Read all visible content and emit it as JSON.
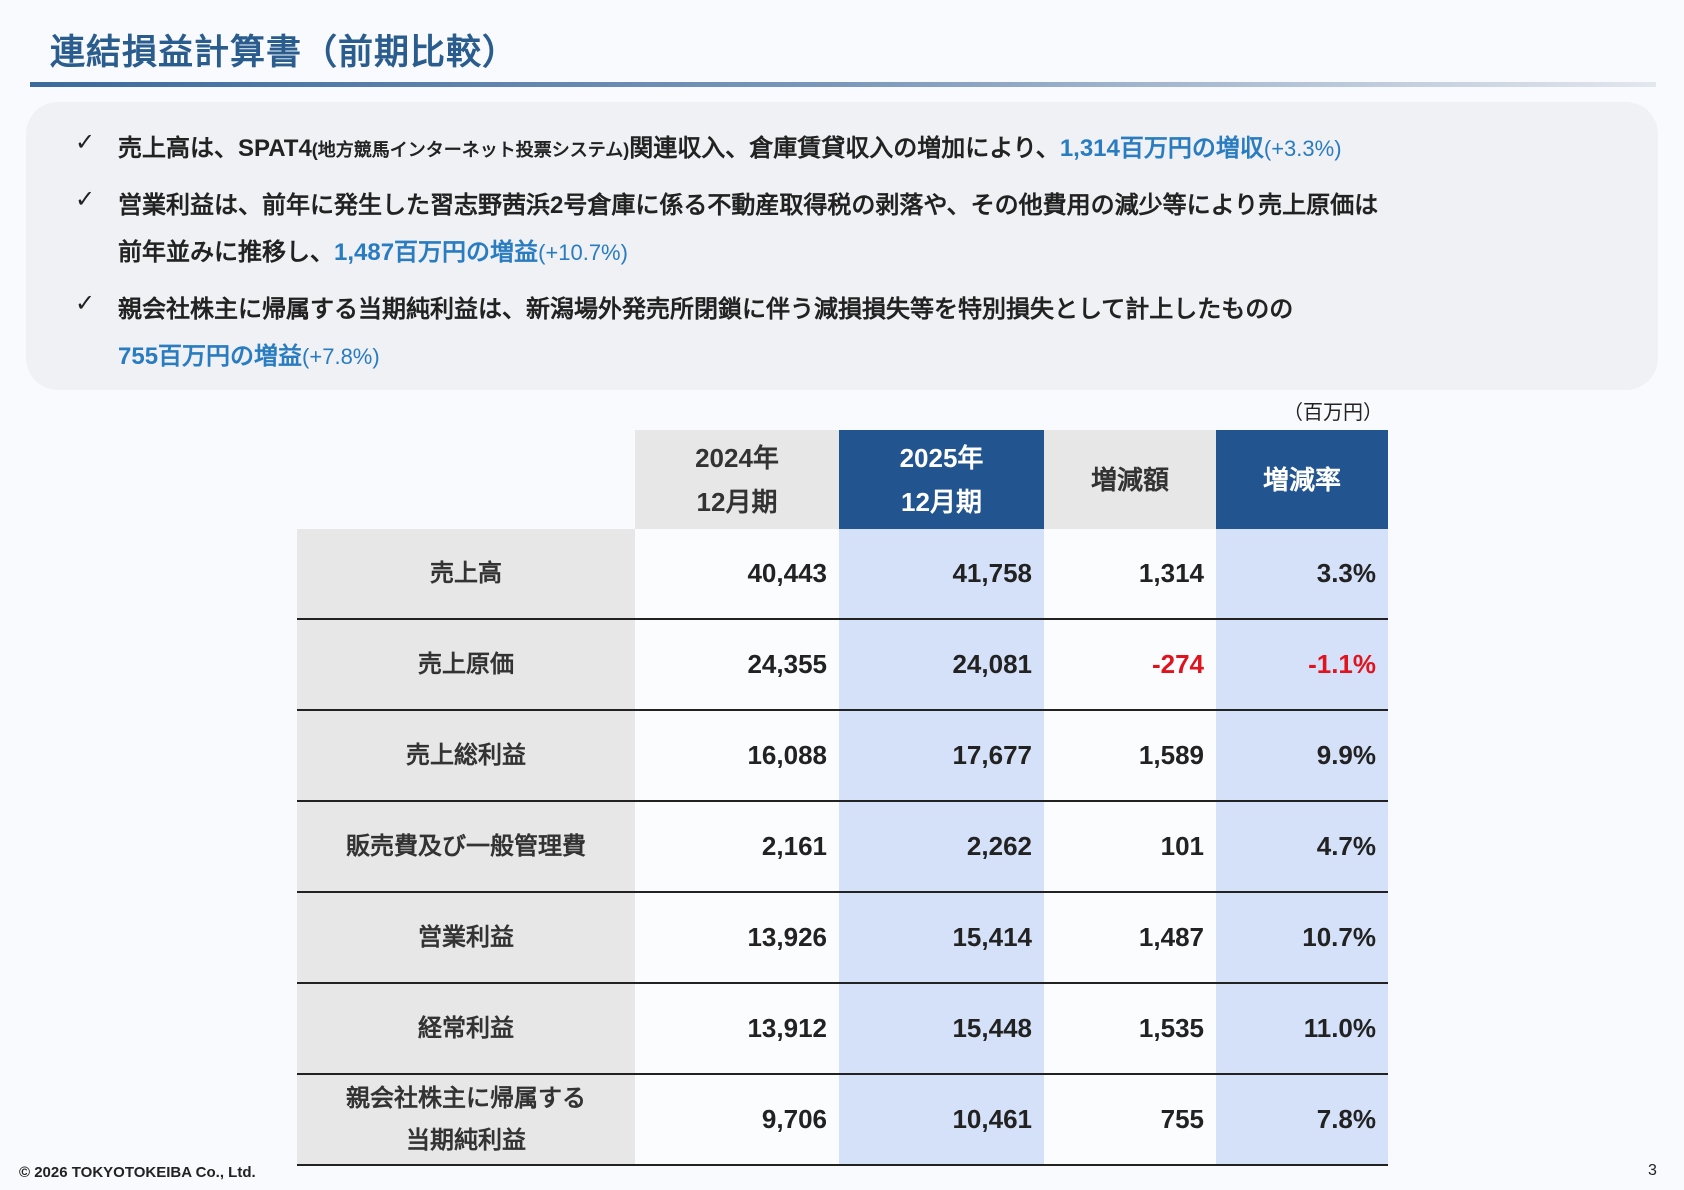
{
  "title": "連結損益計算書（前期比較）",
  "check_icon": "✓",
  "bullets": [
    {
      "l1_a": "売上高は、SPAT4",
      "l1_small": "(地方競馬インターネット投票システム)",
      "l1_b": "関連収入、倉庫賃貸収入の増加により、",
      "hl": "1,314百万円の増収",
      "pct": "(+3.3%)"
    },
    {
      "l1": "営業利益は、前年に発生した習志野茜浜2号倉庫に係る不動産取得税の剥落や、その他費用の減少等により売上原価は",
      "l2": "前年並みに推移し、",
      "hl": "1,487百万円の増益",
      "pct": "(+10.7%)"
    },
    {
      "l1": "親会社株主に帰属する当期純利益は、新潟場外発売所閉鎖に伴う減損損失等を特別損失として計上したものの",
      "hl": "755百万円の増益",
      "pct": "(+7.8%)"
    }
  ],
  "unit": "（百万円）",
  "table": {
    "headers": [
      {
        "l1": "2024年",
        "l2": "12月期"
      },
      {
        "l1": "2025年",
        "l2": "12月期"
      },
      {
        "l1": "増減額"
      },
      {
        "l1": "増減率"
      }
    ],
    "rows": [
      {
        "label": "売上高",
        "v2024": "40,443",
        "v2025": "41,758",
        "diff": "1,314",
        "rate": "3.3%"
      },
      {
        "label": "売上原価",
        "v2024": "24,355",
        "v2025": "24,081",
        "diff": "-274",
        "rate": "-1.1%"
      },
      {
        "label": "売上総利益",
        "v2024": "16,088",
        "v2025": "17,677",
        "diff": "1,589",
        "rate": "9.9%"
      },
      {
        "label": "販売費及び一般管理費",
        "v2024": "2,161",
        "v2025": "2,262",
        "diff": "101",
        "rate": "4.7%"
      },
      {
        "label": "営業利益",
        "v2024": "13,926",
        "v2025": "15,414",
        "diff": "1,487",
        "rate": "10.7%"
      },
      {
        "label": "経常利益",
        "v2024": "13,912",
        "v2025": "15,448",
        "diff": "1,535",
        "rate": "11.0%"
      },
      {
        "label": "親会社株主に帰属する",
        "label2": "当期純利益",
        "v2024": "9,706",
        "v2025": "10,461",
        "diff": "755",
        "rate": "7.8%"
      }
    ]
  },
  "colors": {
    "title": "#2a5d8e",
    "highlight": "#2a7cc0",
    "header_dark": "#22548f",
    "highlight_col": "#d4e1f8",
    "negative": "#e0141e"
  },
  "footer": {
    "copyright": "© 2026 TOKYOTOKEIBA Co., Ltd.",
    "page": "3"
  }
}
